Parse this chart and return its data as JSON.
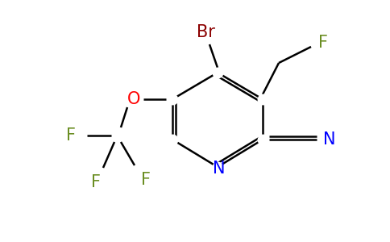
{
  "bg_color": "#ffffff",
  "bond_color": "#000000",
  "bond_width": 1.8,
  "figsize": [
    4.84,
    3.0
  ],
  "dpi": 100,
  "colors": {
    "Br": "#8b0000",
    "F": "#6b8e23",
    "O": "#ff0000",
    "N": "#0000ff",
    "C": "#000000"
  }
}
